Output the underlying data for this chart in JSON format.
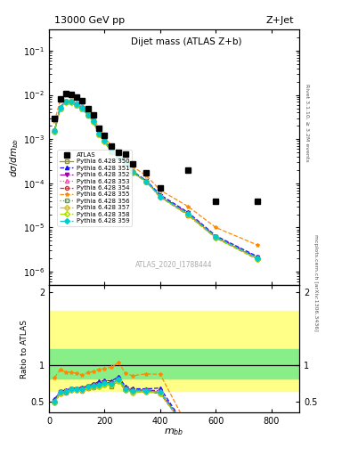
{
  "title_top": "13000 GeV pp",
  "title_right": "Z+Jet",
  "plot_title": "Dijet mass (ATLAS Z+b)",
  "ylabel_main": "dσ/dm_{bb}",
  "ylabel_ratio": "Ratio to ATLAS",
  "xlabel": "m_{bb}",
  "right_label_top": "Rivet 3.1.10, ≥ 3.2M events",
  "right_label_bot": "mcplots.cern.ch [arXiv:1306.3436]",
  "watermark": "ATLAS_2020_I1788444",
  "xlim": [
    0,
    900
  ],
  "ylim_main": [
    5e-07,
    0.3
  ],
  "ylim_ratio": [
    0.35,
    2.1
  ],
  "x_atlas": [
    20,
    40,
    60,
    80,
    100,
    120,
    140,
    160,
    180,
    200,
    225,
    250,
    275,
    300,
    350,
    400,
    500,
    600,
    750
  ],
  "y_atlas": [
    0.003,
    0.008,
    0.011,
    0.0105,
    0.009,
    0.0075,
    0.005,
    0.0035,
    0.0018,
    0.0012,
    0.0007,
    0.0005,
    0.00045,
    0.00028,
    0.00017,
    8e-05,
    0.0002,
    4e-05,
    4e-05
  ],
  "series": [
    {
      "label": "Pythia 6.428 350",
      "color": "#999900",
      "linestyle": "-",
      "marker": "s",
      "markerfill": "none",
      "y": [
        0.0015,
        0.005,
        0.007,
        0.007,
        0.006,
        0.005,
        0.0035,
        0.0025,
        0.0013,
        0.0009,
        0.0005,
        0.0004,
        0.0003,
        0.00018,
        0.00011,
        5e-05,
        2e-05,
        6e-06,
        2e-06
      ]
    },
    {
      "label": "Pythia 6.428 351",
      "color": "#1111ff",
      "linestyle": "--",
      "marker": "^",
      "markerfill": "full",
      "y": [
        0.0016,
        0.0052,
        0.0072,
        0.0072,
        0.0062,
        0.0052,
        0.0036,
        0.0026,
        0.0014,
        0.00095,
        0.00055,
        0.00042,
        0.00032,
        0.00019,
        0.000115,
        5.5e-05,
        2.2e-05,
        6.5e-06,
        2.2e-06
      ]
    },
    {
      "label": "Pythia 6.428 352",
      "color": "#9900aa",
      "linestyle": "-.",
      "marker": "v",
      "markerfill": "full",
      "y": [
        0.00155,
        0.0051,
        0.0071,
        0.0071,
        0.0061,
        0.0051,
        0.00355,
        0.00255,
        0.00135,
        0.00092,
        0.00053,
        0.00041,
        0.00031,
        0.000185,
        0.000112,
        5.2e-05,
        2.1e-05,
        6.2e-06,
        2.1e-06
      ]
    },
    {
      "label": "Pythia 6.428 353",
      "color": "#ff44aa",
      "linestyle": ":",
      "marker": "^",
      "markerfill": "none",
      "y": [
        0.0015,
        0.005,
        0.007,
        0.007,
        0.006,
        0.005,
        0.0035,
        0.0025,
        0.0013,
        0.0009,
        0.00052,
        0.0004,
        0.0003,
        0.00018,
        0.00011,
        5e-05,
        2e-05,
        6e-06,
        2e-06
      ]
    },
    {
      "label": "Pythia 6.428 354",
      "color": "#ff2222",
      "linestyle": "--",
      "marker": "o",
      "markerfill": "none",
      "y": [
        0.00145,
        0.0049,
        0.0069,
        0.0069,
        0.0059,
        0.0049,
        0.00345,
        0.00245,
        0.00128,
        0.00088,
        0.00051,
        0.00039,
        0.000295,
        0.000175,
        0.000108,
        4.9e-05,
        1.9e-05,
        5.8e-06,
        1.9e-06
      ]
    },
    {
      "label": "Pythia 6.428 355",
      "color": "#ff8800",
      "linestyle": "--",
      "marker": "*",
      "markerfill": "full",
      "y": [
        0.0025,
        0.0075,
        0.01,
        0.0095,
        0.008,
        0.0065,
        0.0045,
        0.0032,
        0.0017,
        0.00115,
        0.00068,
        0.00052,
        0.0004,
        0.00024,
        0.00015,
        7e-05,
        3e-05,
        1e-05,
        4e-06
      ]
    },
    {
      "label": "Pythia 6.428 356",
      "color": "#44aa44",
      "linestyle": ":",
      "marker": "s",
      "markerfill": "none",
      "y": [
        0.0015,
        0.005,
        0.007,
        0.007,
        0.006,
        0.005,
        0.0035,
        0.0025,
        0.0013,
        0.0009,
        0.00052,
        0.0004,
        0.0003,
        0.00018,
        0.00011,
        5e-05,
        2e-05,
        6e-06,
        2e-06
      ]
    },
    {
      "label": "Pythia 6.428 357",
      "color": "#ddbb00",
      "linestyle": "--",
      "marker": "D",
      "markerfill": "none",
      "y": [
        0.00148,
        0.00495,
        0.00695,
        0.00695,
        0.00595,
        0.00495,
        0.00348,
        0.00248,
        0.00129,
        0.00089,
        0.000515,
        0.000395,
        0.000297,
        0.000178,
        0.000109,
        4.95e-05,
        1.95e-05,
        5.9e-06,
        1.95e-06
      ]
    },
    {
      "label": "Pythia 6.428 358",
      "color": "#aadd00",
      "linestyle": "-.",
      "marker": "D",
      "markerfill": "none",
      "y": [
        0.00146,
        0.00492,
        0.00692,
        0.00692,
        0.00592,
        0.00492,
        0.00346,
        0.00246,
        0.00128,
        0.00088,
        0.00051,
        0.000392,
        0.000295,
        0.000176,
        0.000108,
        4.92e-05,
        1.92e-05,
        5.8e-06,
        1.92e-06
      ]
    },
    {
      "label": "Pythia 6.428 359",
      "color": "#00cccc",
      "linestyle": "--",
      "marker": "D",
      "markerfill": "full",
      "y": [
        0.00152,
        0.00505,
        0.00705,
        0.00705,
        0.00605,
        0.00505,
        0.00352,
        0.00252,
        0.00132,
        0.00091,
        0.000525,
        0.000405,
        0.000305,
        0.000182,
        0.000111,
        5.05e-05,
        2.05e-05,
        6.1e-06,
        2.05e-06
      ]
    }
  ],
  "ratio_band_yellow": [
    0.65,
    1.75
  ],
  "ratio_band_green": [
    0.82,
    1.22
  ]
}
